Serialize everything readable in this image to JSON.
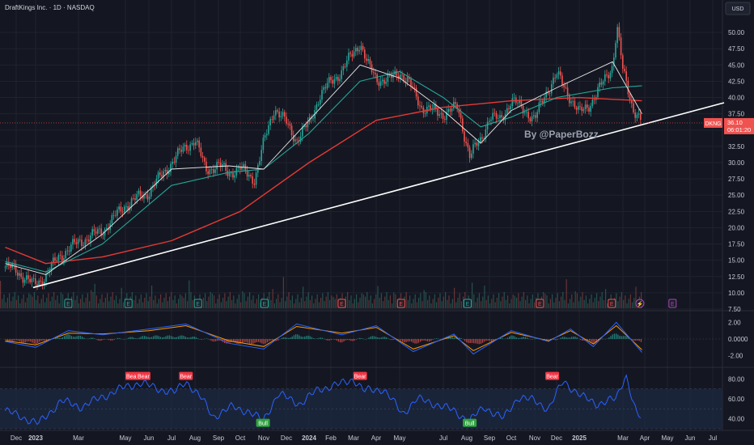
{
  "header": {
    "title": "DraftKings Inc. · 1D · NASDAQ",
    "currency": "USD"
  },
  "watermark": "By @PaperBozz",
  "last_price": {
    "ticker": "DKNG",
    "price": "36.10",
    "countdown": "06:01:20"
  },
  "colors": {
    "background": "#141721",
    "grid": "#1f2330",
    "axis_text": "#c6c9d2",
    "up": "#26a69a",
    "down": "#ef5350",
    "ma_short": "#e8e8e8",
    "ma_mid": "#26a69a",
    "ma_long": "#e53935",
    "trendline": "#ffffff",
    "macd": "#2962ff",
    "signal": "#ff9800",
    "rsi": "#2962ff",
    "rsi_band": "#1c2840",
    "bear": "#f23645",
    "bull": "#2fa33f"
  },
  "chart_data": [
    {
      "type": "line",
      "panel": "price",
      "chart_style": "candlestick",
      "ylim": [
        7.5,
        52.5
      ],
      "scale": "linear",
      "y_ticks": [
        "50.00",
        "47.50",
        "45.00",
        "42.50",
        "40.00",
        "37.50",
        "35.00",
        "32.50",
        "30.00",
        "27.50",
        "25.00",
        "22.50",
        "20.00",
        "17.50",
        "15.00",
        "12.50",
        "10.00",
        "7.50"
      ],
      "x_ticks": [
        "Dec",
        "2023",
        "Mar",
        "May",
        "Jun",
        "Jul",
        "Aug",
        "Sep",
        "Oct",
        "Nov",
        "Dec",
        "2024",
        "Feb",
        "Mar",
        "Apr",
        "May",
        "Jul",
        "Aug",
        "Sep",
        "Oct",
        "Nov",
        "Dec",
        "2025",
        "Mar",
        "Apr",
        "May",
        "Jun",
        "Jul"
      ],
      "series": [
        {
          "role": "close",
          "x": [
            "2022-11-15",
            "2022-12-01",
            "2022-12-28",
            "2023-01-15",
            "2023-02-01",
            "2023-03-01",
            "2023-04-01",
            "2023-05-01",
            "2023-06-01",
            "2023-07-01",
            "2023-07-20",
            "2023-08-01",
            "2023-08-15",
            "2023-09-01",
            "2023-09-15",
            "2023-10-01",
            "2023-10-20",
            "2023-11-01",
            "2023-11-15",
            "2023-12-01",
            "2023-12-15",
            "2024-01-01",
            "2024-01-15",
            "2024-02-01",
            "2024-02-15",
            "2024-03-01",
            "2024-03-10",
            "2024-03-20",
            "2024-04-01",
            "2024-04-15",
            "2024-05-01",
            "2024-05-15",
            "2024-06-01",
            "2024-06-15",
            "2024-07-01",
            "2024-07-20",
            "2024-08-05",
            "2024-08-20",
            "2024-09-01",
            "2024-09-15",
            "2024-10-01",
            "2024-10-20",
            "2024-11-01",
            "2024-11-15",
            "2024-12-01",
            "2024-12-15",
            "2025-01-01",
            "2025-01-15",
            "2025-02-01",
            "2025-02-15",
            "2025-02-21",
            "2025-03-01",
            "2025-03-15",
            "2025-03-28"
          ],
          "y": [
            14.0,
            13.5,
            11.2,
            12.5,
            15.5,
            17.8,
            19.5,
            23.5,
            25.5,
            30.0,
            32.5,
            33.5,
            29.0,
            29.5,
            28.5,
            29.0,
            27.5,
            33.0,
            38.5,
            36.0,
            33.5,
            36.0,
            40.0,
            42.5,
            44.0,
            47.0,
            48.5,
            45.0,
            43.0,
            42.5,
            44.0,
            42.0,
            38.5,
            38.0,
            37.5,
            38.5,
            31.0,
            33.5,
            37.0,
            36.5,
            39.5,
            38.0,
            36.5,
            40.5,
            43.5,
            41.0,
            37.5,
            39.0,
            42.0,
            45.0,
            51.0,
            44.0,
            38.5,
            36.1
          ]
        },
        {
          "role": "ma_short",
          "x": [
            "2022-11-15",
            "2023-01-15",
            "2023-04-01",
            "2023-07-01",
            "2023-09-15",
            "2023-11-01",
            "2024-01-01",
            "2024-03-10",
            "2024-05-01",
            "2024-07-01",
            "2024-08-20",
            "2024-10-01",
            "2024-12-01",
            "2025-02-15",
            "2025-03-28"
          ],
          "y": [
            14.5,
            12.8,
            19.0,
            29.0,
            29.5,
            29.0,
            36.5,
            45.0,
            43.0,
            38.0,
            33.0,
            38.0,
            41.5,
            45.5,
            37.5
          ]
        },
        {
          "role": "ma_mid",
          "x": [
            "2022-11-15",
            "2023-01-15",
            "2023-04-01",
            "2023-07-01",
            "2023-09-15",
            "2023-11-01",
            "2024-01-01",
            "2024-03-10",
            "2024-05-01",
            "2024-07-01",
            "2024-08-20",
            "2024-10-01",
            "2024-12-01",
            "2025-02-15",
            "2025-03-28"
          ],
          "y": [
            14.8,
            13.2,
            17.5,
            26.5,
            28.5,
            29.0,
            34.5,
            42.5,
            44.0,
            40.0,
            35.5,
            37.0,
            40.0,
            41.5,
            41.8
          ]
        },
        {
          "role": "ma_long",
          "x": [
            "2022-11-15",
            "2023-01-15",
            "2023-04-01",
            "2023-07-01",
            "2023-10-01",
            "2024-01-01",
            "2024-04-01",
            "2024-07-01",
            "2024-10-01",
            "2025-01-01",
            "2025-03-28"
          ],
          "y": [
            17.0,
            14.5,
            15.5,
            18.0,
            22.5,
            30.0,
            36.5,
            38.5,
            39.5,
            40.0,
            39.5
          ]
        }
      ],
      "earnings_markers": [
        {
          "x": "2023-02-15",
          "label": "E",
          "kind": "beat"
        },
        {
          "x": "2023-05-05",
          "label": "E",
          "kind": "beat"
        },
        {
          "x": "2023-08-05",
          "label": "E",
          "kind": "beat"
        },
        {
          "x": "2023-11-02",
          "label": "E",
          "kind": "beat"
        },
        {
          "x": "2024-02-15",
          "label": "E",
          "kind": "miss"
        },
        {
          "x": "2024-05-03",
          "label": "E",
          "kind": "miss"
        },
        {
          "x": "2024-08-02",
          "label": "E",
          "kind": "beat"
        },
        {
          "x": "2024-11-08",
          "label": "E",
          "kind": "miss"
        },
        {
          "x": "2025-02-14",
          "label": "E",
          "kind": "miss"
        },
        {
          "x": "2025-03-25",
          "label": "⚡",
          "kind": "event"
        },
        {
          "x": "2025-05-08",
          "label": "E",
          "kind": "upcoming"
        }
      ]
    },
    {
      "type": "line",
      "panel": "macd",
      "ylim": [
        -3.2,
        3.2
      ],
      "y_ticks": [
        "2.00",
        "0.0000",
        "-2.00"
      ],
      "series": [
        {
          "role": "macd",
          "x": [
            "2022-11-15",
            "2023-01-01",
            "2023-02-15",
            "2023-04-01",
            "2023-06-01",
            "2023-07-20",
            "2023-09-15",
            "2023-11-01",
            "2023-12-15",
            "2024-02-15",
            "2024-04-01",
            "2024-05-20",
            "2024-07-15",
            "2024-08-10",
            "2024-10-01",
            "2024-11-20",
            "2024-12-20",
            "2025-01-20",
            "2025-02-20",
            "2025-03-28"
          ],
          "y": [
            -0.3,
            -1.0,
            1.0,
            0.5,
            1.2,
            1.8,
            -0.5,
            -1.2,
            1.8,
            0.5,
            1.6,
            -1.5,
            0.6,
            -1.8,
            1.0,
            -0.3,
            1.2,
            -0.9,
            2.0,
            -1.6
          ]
        },
        {
          "role": "signal",
          "x": [
            "2022-11-15",
            "2023-01-01",
            "2023-02-15",
            "2023-04-01",
            "2023-06-01",
            "2023-07-20",
            "2023-09-15",
            "2023-11-01",
            "2023-12-15",
            "2024-02-15",
            "2024-04-01",
            "2024-05-20",
            "2024-07-15",
            "2024-08-10",
            "2024-10-01",
            "2024-11-20",
            "2024-12-20",
            "2025-01-20",
            "2025-02-20",
            "2025-03-28"
          ],
          "y": [
            -0.2,
            -0.7,
            0.7,
            0.6,
            1.0,
            1.6,
            -0.2,
            -0.9,
            1.5,
            0.7,
            1.4,
            -1.2,
            0.4,
            -1.4,
            0.8,
            -0.2,
            1.0,
            -0.6,
            1.6,
            -1.3
          ]
        }
      ]
    },
    {
      "type": "line",
      "panel": "rsi",
      "ylim": [
        30,
        90
      ],
      "band": [
        30,
        70
      ],
      "y_ticks": [
        "80.00",
        "60.00",
        "40.00"
      ],
      "series": [
        {
          "role": "rsi",
          "x": [
            "2022-11-15",
            "2022-12-10",
            "2023-01-05",
            "2023-02-05",
            "2023-03-05",
            "2023-04-01",
            "2023-05-01",
            "2023-05-20",
            "2023-06-15",
            "2023-07-05",
            "2023-07-20",
            "2023-08-10",
            "2023-08-25",
            "2023-09-20",
            "2023-10-10",
            "2023-10-31",
            "2023-11-20",
            "2023-12-20",
            "2024-01-15",
            "2024-02-10",
            "2024-03-01",
            "2024-03-15",
            "2024-04-10",
            "2024-05-05",
            "2024-05-25",
            "2024-06-20",
            "2024-07-15",
            "2024-08-05",
            "2024-08-25",
            "2024-09-20",
            "2024-10-10",
            "2024-11-01",
            "2024-11-20",
            "2024-12-10",
            "2025-01-05",
            "2025-01-25",
            "2025-02-20",
            "2025-03-05",
            "2025-03-20",
            "2025-03-28"
          ],
          "y": [
            48,
            42,
            35,
            58,
            52,
            62,
            72,
            76,
            70,
            66,
            78,
            60,
            42,
            52,
            48,
            38,
            65,
            55,
            70,
            74,
            80,
            68,
            70,
            45,
            60,
            55,
            48,
            38,
            52,
            40,
            62,
            58,
            50,
            78,
            62,
            55,
            60,
            85,
            45,
            40
          ]
        }
      ],
      "annotations": [
        {
          "x": "2022-11-01",
          "label": "",
          "kind": "bull"
        },
        {
          "x": "2023-05-10",
          "label": "Bear",
          "kind": "bear"
        },
        {
          "x": "2023-05-25",
          "label": "Bear",
          "kind": "bear"
        },
        {
          "x": "2023-07-20",
          "label": "Bear",
          "kind": "bear"
        },
        {
          "x": "2023-10-31",
          "label": "Bull",
          "kind": "bull"
        },
        {
          "x": "2024-03-10",
          "label": "Bear",
          "kind": "bear"
        },
        {
          "x": "2024-08-05",
          "label": "Bull",
          "kind": "bull"
        },
        {
          "x": "2024-11-25",
          "label": "Bear",
          "kind": "bear"
        }
      ]
    }
  ]
}
